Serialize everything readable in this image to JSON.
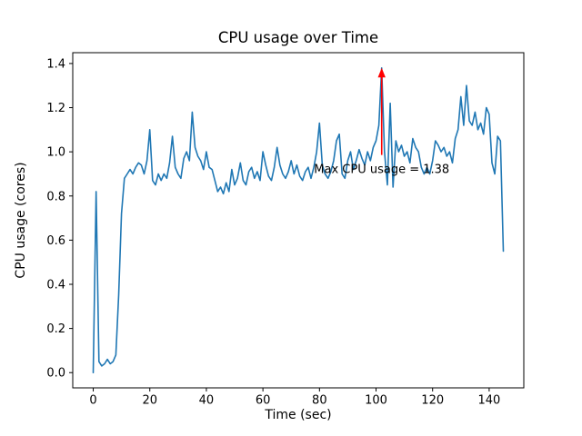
{
  "figure": {
    "background": "#ffffff",
    "axes_color": "#000000"
  },
  "chart_data": {
    "type": "line",
    "title": "CPU usage over Time",
    "xlabel": "Time (sec)",
    "ylabel": "CPU usage (cores)",
    "grid": false,
    "legend": "none",
    "line_color": "#1f77b4",
    "xlim": [
      -7.25,
      152.25
    ],
    "ylim": [
      -0.069,
      1.449
    ],
    "xticks": [
      0,
      20,
      40,
      60,
      80,
      100,
      120,
      140
    ],
    "yticks": [
      0.0,
      0.2,
      0.4,
      0.6,
      0.8,
      1.0,
      1.2,
      1.4
    ],
    "x": [
      0,
      1,
      2,
      3,
      4,
      5,
      6,
      7,
      8,
      9,
      10,
      11,
      12,
      13,
      14,
      15,
      16,
      17,
      18,
      19,
      20,
      21,
      22,
      23,
      24,
      25,
      26,
      27,
      28,
      29,
      30,
      31,
      32,
      33,
      34,
      35,
      36,
      37,
      38,
      39,
      40,
      41,
      42,
      43,
      44,
      45,
      46,
      47,
      48,
      49,
      50,
      51,
      52,
      53,
      54,
      55,
      56,
      57,
      58,
      59,
      60,
      61,
      62,
      63,
      64,
      65,
      66,
      67,
      68,
      69,
      70,
      71,
      72,
      73,
      74,
      75,
      76,
      77,
      78,
      79,
      80,
      81,
      82,
      83,
      84,
      85,
      86,
      87,
      88,
      89,
      90,
      91,
      92,
      93,
      94,
      95,
      96,
      97,
      98,
      99,
      100,
      101,
      102,
      103,
      104,
      105,
      106,
      107,
      108,
      109,
      110,
      111,
      112,
      113,
      114,
      115,
      116,
      117,
      118,
      119,
      120,
      121,
      122,
      123,
      124,
      125,
      126,
      127,
      128,
      129,
      130,
      131,
      132,
      133,
      134,
      135,
      136,
      137,
      138,
      139,
      140,
      141,
      142,
      143,
      144,
      145
    ],
    "y": [
      0.0,
      0.82,
      0.05,
      0.03,
      0.04,
      0.06,
      0.04,
      0.05,
      0.08,
      0.35,
      0.72,
      0.88,
      0.9,
      0.92,
      0.9,
      0.93,
      0.95,
      0.94,
      0.9,
      0.96,
      1.1,
      0.87,
      0.85,
      0.9,
      0.87,
      0.9,
      0.88,
      0.95,
      1.07,
      0.93,
      0.9,
      0.88,
      0.97,
      1.0,
      0.96,
      1.18,
      1.02,
      0.98,
      0.96,
      0.92,
      1.0,
      0.93,
      0.92,
      0.87,
      0.82,
      0.84,
      0.81,
      0.86,
      0.82,
      0.92,
      0.85,
      0.88,
      0.95,
      0.87,
      0.85,
      0.91,
      0.93,
      0.88,
      0.91,
      0.87,
      1.0,
      0.94,
      0.89,
      0.87,
      0.93,
      1.02,
      0.94,
      0.9,
      0.88,
      0.91,
      0.96,
      0.9,
      0.94,
      0.89,
      0.87,
      0.91,
      0.93,
      0.88,
      0.93,
      1.0,
      1.13,
      0.94,
      0.9,
      0.88,
      0.91,
      0.96,
      1.05,
      1.08,
      0.9,
      0.88,
      0.96,
      1.0,
      0.92,
      0.96,
      1.01,
      0.97,
      0.94,
      1.0,
      0.96,
      1.02,
      1.05,
      1.12,
      1.38,
      1.0,
      0.85,
      1.22,
      0.84,
      1.05,
      1.0,
      1.03,
      0.98,
      1.0,
      0.95,
      1.06,
      1.02,
      1.0,
      0.93,
      0.9,
      0.93,
      0.9,
      0.96,
      1.05,
      1.03,
      1.0,
      1.02,
      0.98,
      1.0,
      0.95,
      1.06,
      1.1,
      1.25,
      1.12,
      1.3,
      1.14,
      1.12,
      1.18,
      1.1,
      1.13,
      1.08,
      1.2,
      1.17,
      0.95,
      0.9,
      1.07,
      1.05,
      0.55
    ],
    "annotation": {
      "text": "Max CPU usage = 1.38",
      "xy": [
        102,
        1.38
      ],
      "xytext": [
        102,
        0.92
      ],
      "color": "#ff0000"
    }
  }
}
